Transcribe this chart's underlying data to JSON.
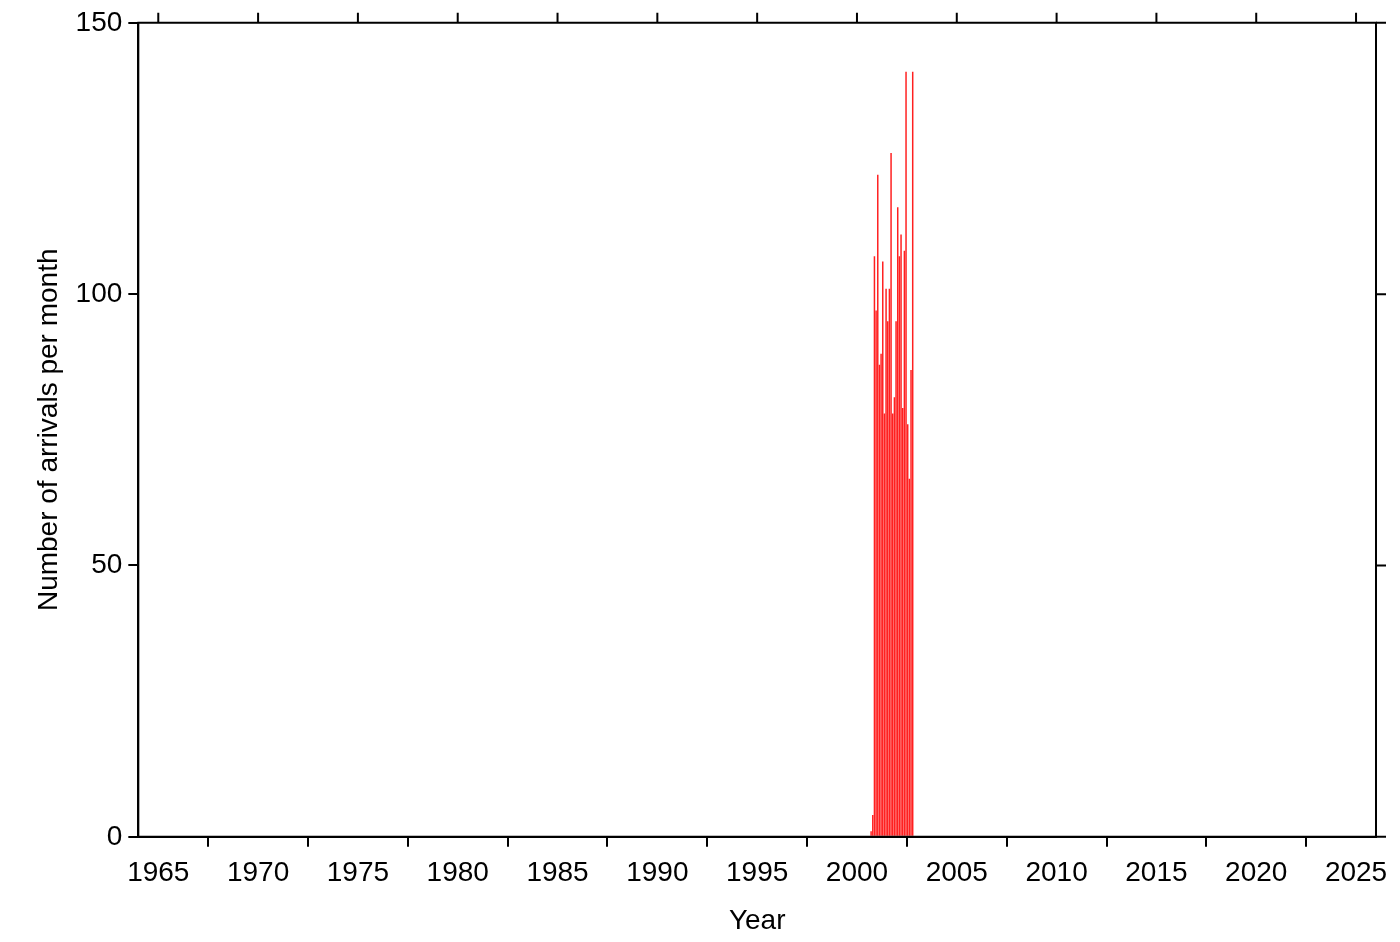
{
  "chart_data": {
    "type": "bar",
    "xlabel": "Year",
    "ylabel": "Number of arrivals per month",
    "x": [
      2000.708,
      2000.792,
      2000.875,
      2000.958,
      2001.042,
      2001.125,
      2001.208,
      2001.292,
      2001.375,
      2001.458,
      2001.542,
      2001.625,
      2001.708,
      2001.792,
      2001.875,
      2001.958,
      2002.042,
      2002.125,
      2002.208,
      2002.292,
      2002.375,
      2002.458,
      2002.542,
      2002.625,
      2002.708,
      2002.792
    ],
    "values": [
      1,
      4,
      107,
      97,
      122,
      87,
      89,
      106,
      78,
      101,
      95,
      101,
      126,
      78,
      81,
      95,
      116,
      107,
      111,
      79,
      108,
      141,
      76,
      66,
      86,
      141
    ],
    "color": "#ff2020",
    "xlim": [
      1964,
      2026
    ],
    "xticks": [
      1965,
      1970,
      1975,
      1980,
      1985,
      1990,
      1995,
      2000,
      2005,
      2010,
      2015,
      2020,
      2025
    ],
    "ylim": [
      0,
      150
    ],
    "yticks": [
      0,
      50,
      100,
      150
    ],
    "grid": false,
    "legend": false
  }
}
